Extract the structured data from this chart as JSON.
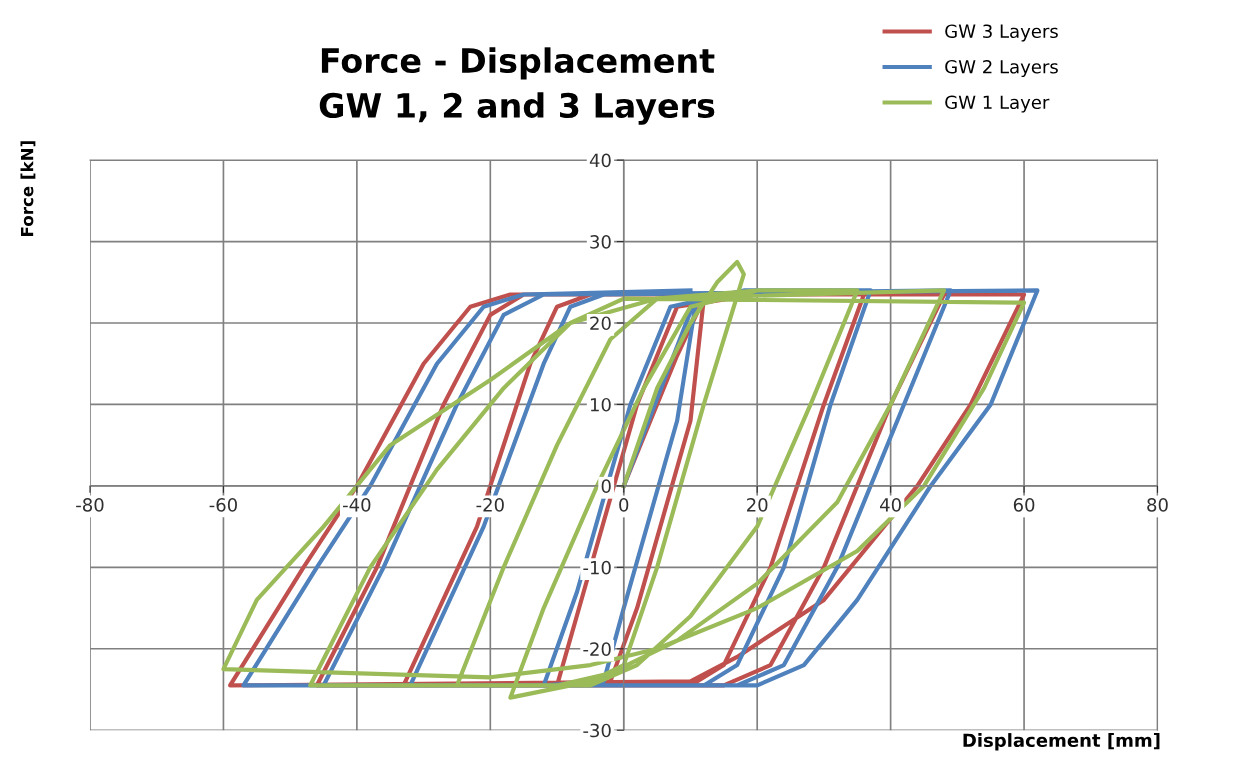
{
  "chart_data": {
    "type": "line",
    "title": "Force - Displacement\nGW 1, 2 and 3 Layers",
    "xlabel": "Displacement [mm]",
    "ylabel": "Force [kN]",
    "xlim": [
      -80,
      80
    ],
    "xticks": [
      -80,
      -60,
      -40,
      -20,
      0,
      20,
      40,
      60,
      80
    ],
    "ylim": [
      -30,
      40
    ],
    "yticks": [
      -30,
      -20,
      -10,
      0,
      10,
      20,
      30,
      40
    ],
    "grid": true,
    "legend": "top right",
    "marker": "none",
    "line_style": "solid",
    "series": [
      {
        "name": "GW 3 Layers",
        "color": "#c0504d",
        "x": [
          0,
          8,
          12,
          10,
          2,
          -2,
          -10,
          -6,
          2,
          8,
          20,
          36,
          30,
          22,
          15,
          10,
          -33,
          -22,
          -14,
          -10,
          -5,
          48,
          40,
          30,
          22,
          15,
          -46,
          -37,
          -27,
          -20,
          -15,
          60,
          52,
          44,
          30,
          17,
          10,
          -59,
          -48,
          -40,
          -30,
          -23,
          -17,
          10
        ],
        "values": [
          0,
          16,
          23,
          8,
          -15,
          -24,
          -24.5,
          -13,
          10,
          22,
          23.5,
          23.5,
          10,
          -10,
          -22,
          -24.5,
          -24.5,
          -5,
          15,
          22,
          23.5,
          23.5,
          10,
          -10,
          -22,
          -24.5,
          -24.5,
          -10,
          10,
          21,
          23.5,
          23.5,
          10,
          0,
          -14,
          -21,
          -24,
          -24.5,
          -10,
          0,
          15,
          22,
          23.5,
          23.5
        ]
      },
      {
        "name": "GW 2 Layers",
        "color": "#4f81bd",
        "x": [
          0,
          7,
          11,
          8,
          0,
          -3,
          -12,
          -7,
          1,
          7,
          18,
          37,
          31,
          24,
          17,
          12,
          -32,
          -21,
          -12,
          -8,
          -3,
          49,
          42,
          32,
          24,
          17,
          -45,
          -36,
          -25,
          -18,
          -12,
          62,
          55,
          46,
          35,
          27,
          20,
          -57,
          -46,
          -38,
          -28,
          -21,
          -15,
          10
        ],
        "values": [
          0,
          15,
          23.5,
          8,
          -15,
          -24,
          -24.5,
          -13,
          10,
          22,
          24,
          24,
          10,
          -10,
          -22,
          -24.5,
          -24.5,
          -5,
          15,
          22,
          23.5,
          24,
          10,
          -10,
          -22,
          -24.5,
          -24.5,
          -10,
          10,
          21,
          23.5,
          24,
          10,
          0,
          -14,
          -22,
          -24.5,
          -24.5,
          -10,
          0,
          15,
          22,
          23.5,
          24
        ]
      },
      {
        "name": "GW 1 Layer",
        "color": "#9bbb59",
        "x": [
          0,
          5,
          10,
          14,
          17,
          18,
          12,
          5,
          0,
          -5,
          -17,
          -12,
          -4,
          3,
          10,
          20,
          35,
          28,
          20,
          10,
          2,
          -5,
          -25,
          -18,
          -10,
          -2,
          5,
          48,
          40,
          32,
          20,
          8,
          -2,
          -10,
          -47,
          -38,
          -28,
          -18,
          -8,
          0,
          60,
          54,
          45,
          35,
          20,
          5,
          -5,
          -20,
          -60,
          -55,
          -45,
          -35,
          -20,
          -8,
          5,
          20
        ],
        "values": [
          0,
          12,
          20,
          25,
          27.5,
          26,
          10,
          -10,
          -22,
          -24,
          -26,
          -15,
          0,
          12,
          22,
          24,
          24,
          10,
          -5,
          -16,
          -22,
          -24.5,
          -24.5,
          -10,
          5,
          18,
          23,
          24,
          10,
          -2,
          -12,
          -19,
          -23,
          -24.5,
          -24.5,
          -10,
          2,
          12,
          20,
          23,
          22.5,
          12,
          0,
          -8,
          -15,
          -20,
          -22,
          -23.5,
          -22.5,
          -14,
          -5,
          5,
          13,
          20,
          23,
          24
        ]
      }
    ]
  }
}
